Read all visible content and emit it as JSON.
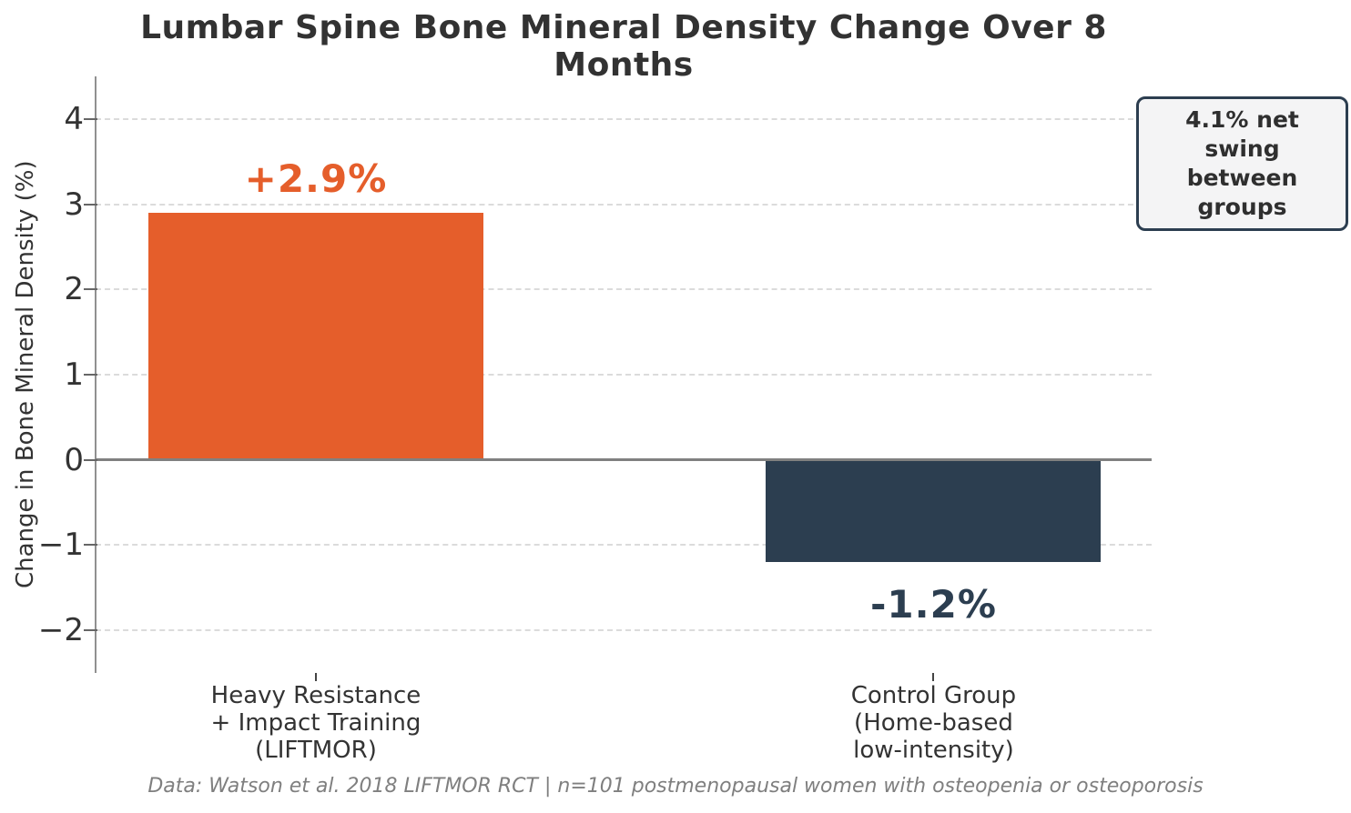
{
  "chart_data": {
    "type": "bar",
    "title": "Lumbar Spine Bone Mineral Density Change Over 8 Months",
    "ylabel": "Change in Bone Mineral Density (%)",
    "xlabel": "",
    "categories": [
      "Heavy Resistance\n+ Impact Training\n(LIFTMOR)",
      "Control Group\n(Home-based\nlow-intensity)"
    ],
    "values": [
      2.9,
      -1.2
    ],
    "value_labels": [
      "+2.9%",
      "-1.2%"
    ],
    "bar_colors": [
      "#E55E2B",
      "#2C3E50"
    ],
    "value_label_colors": [
      "#E55E2B",
      "#2C3E50"
    ],
    "ylim": [
      -2.5,
      4.5
    ],
    "yticks": [
      4,
      3,
      2,
      1,
      0,
      -1,
      -2
    ],
    "ytick_labels": [
      "4",
      "3",
      "2",
      "1",
      "0",
      "−1",
      "−2"
    ],
    "grid": {
      "horizontal": true,
      "style": "dashed",
      "color": "#DBDBDB"
    },
    "zero_line": {
      "show": true,
      "color": "#808080"
    },
    "legend": "none",
    "annotation": {
      "lines": [
        "4.1% net swing",
        "between groups"
      ],
      "border_color": "#2C3E50",
      "bg_color": "#F4F4F5"
    },
    "source_note": "Data: Watson et al. 2018 LIFTMOR RCT | n=101 postmenopausal women with osteopenia or osteoporosis"
  }
}
